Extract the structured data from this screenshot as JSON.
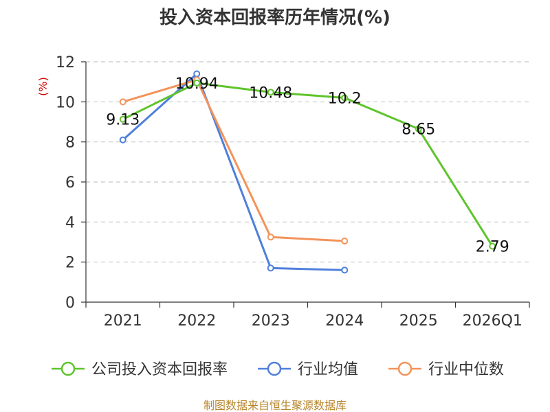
{
  "chart_data": {
    "type": "line",
    "title": "投入资本回报率历年情况(%)",
    "ylabel": "(%)",
    "xlabel": "",
    "categories": [
      "2021",
      "2022",
      "2023",
      "2024",
      "2025",
      "2026Q1"
    ],
    "ylim": [
      0,
      12
    ],
    "yticks": [
      0,
      2,
      4,
      6,
      8,
      10,
      12
    ],
    "grid": true,
    "legend_position": "bottom",
    "series": [
      {
        "name": "公司投入资本回报率",
        "color": "#5ec42b",
        "values": [
          9.13,
          10.94,
          10.48,
          10.2,
          8.65,
          2.79
        ],
        "labels": [
          "9.13",
          "10.94",
          "10.48",
          "10.2",
          "8.65",
          "2.79"
        ]
      },
      {
        "name": "行业均值",
        "color": "#4f7fdb",
        "values": [
          8.1,
          11.4,
          1.7,
          1.6,
          null,
          null
        ]
      },
      {
        "name": "行业中位数",
        "color": "#f4935b",
        "values": [
          10.0,
          11.1,
          3.25,
          3.05,
          null,
          null
        ]
      }
    ],
    "source": "制图数据来自恒生聚源数据库"
  }
}
